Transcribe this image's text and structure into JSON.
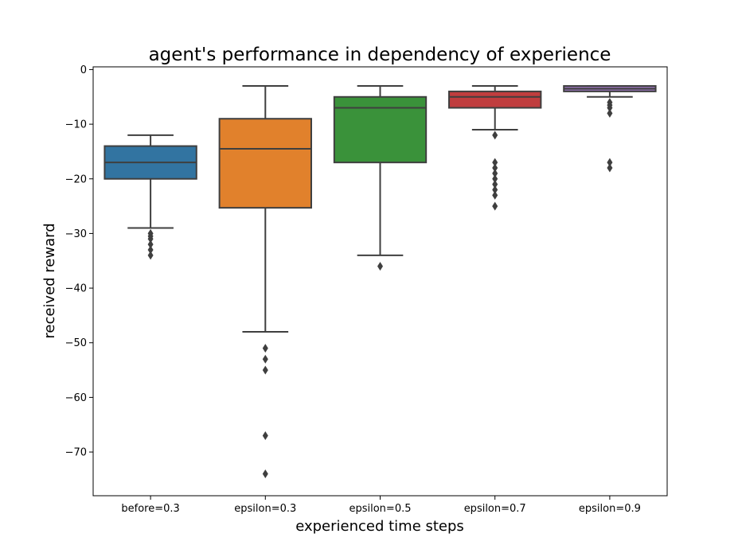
{
  "chart_data": {
    "type": "box",
    "title": "agent's performance in dependency of experience",
    "xlabel": "experienced time steps",
    "ylabel": "received reward",
    "ylim": [
      -78,
      0.5
    ],
    "yticks": [
      0,
      -10,
      -20,
      -30,
      -40,
      -50,
      -60,
      -70
    ],
    "ytick_labels": [
      "0",
      "−10",
      "−20",
      "−30",
      "−40",
      "−50",
      "−60",
      "−70"
    ],
    "categories": [
      "before=0.3",
      "epsilon=0.3",
      "epsilon=0.5",
      "epsilon=0.7",
      "epsilon=0.9"
    ],
    "boxes": [
      {
        "category": "before=0.3",
        "whisker_high": -12,
        "q3": -14,
        "median": -17,
        "q1": -20,
        "whisker_low": -29,
        "outliers": [
          -30,
          -30.5,
          -31,
          -32,
          -33,
          -34
        ],
        "color": "#3274a1"
      },
      {
        "category": "epsilon=0.3",
        "whisker_high": -3,
        "q3": -9,
        "median": -14.5,
        "q1": -25.3,
        "whisker_low": -48,
        "outliers": [
          -51,
          -53,
          -55,
          -67,
          -74
        ],
        "color": "#e1812c"
      },
      {
        "category": "epsilon=0.5",
        "whisker_high": -3,
        "q3": -5,
        "median": -7,
        "q1": -17,
        "whisker_low": -34,
        "outliers": [
          -36
        ],
        "color": "#3a923a"
      },
      {
        "category": "epsilon=0.7",
        "whisker_high": -3,
        "q3": -4,
        "median": -5,
        "q1": -7,
        "whisker_low": -11,
        "outliers": [
          -12,
          -17,
          -18,
          -19,
          -20,
          -21,
          -22,
          -23,
          -25
        ],
        "color": "#c03d3e"
      },
      {
        "category": "epsilon=0.9",
        "whisker_high": -3,
        "q3": -3,
        "median": -3.5,
        "q1": -4,
        "whisker_low": -5,
        "outliers": [
          -6,
          -6.5,
          -7,
          -8,
          -17,
          -18
        ],
        "color": "#9372b2"
      }
    ],
    "grid": false,
    "legend": "none"
  }
}
